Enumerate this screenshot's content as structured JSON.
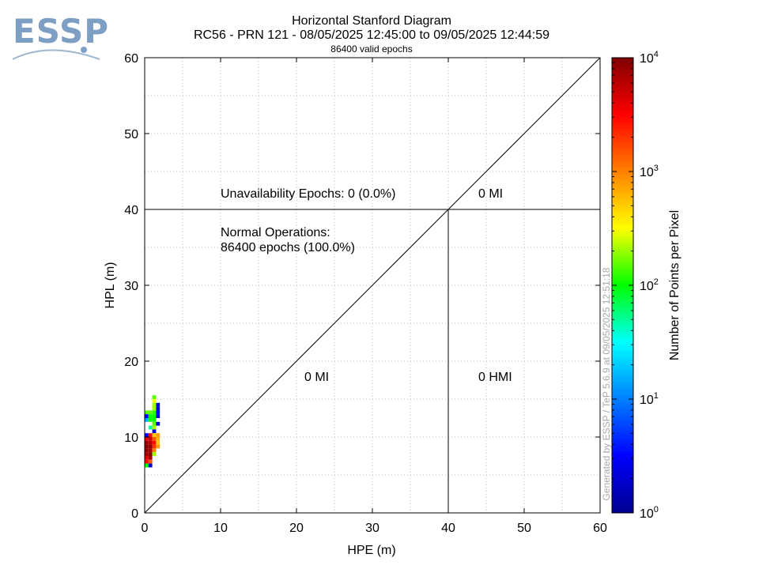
{
  "logo": {
    "text": "ESSP"
  },
  "chart_data": {
    "type": "heatmap",
    "title": "Horizontal Stanford Diagram",
    "subtitle": "RC56 - PRN 121 - 08/05/2025 12:45:00 to 09/05/2025 12:44:59",
    "epochs_label": "86400 valid epochs",
    "xlabel": "HPE (m)",
    "ylabel": "HPL (m)",
    "xlim": [
      0,
      60
    ],
    "ylim": [
      0,
      60
    ],
    "x_ticks": [
      0,
      10,
      20,
      30,
      40,
      50,
      60
    ],
    "y_ticks": [
      0,
      10,
      20,
      30,
      40,
      50,
      60
    ],
    "alert_limit": 40,
    "colorbar": {
      "label": "Number of Points per Pixel",
      "scale": "log",
      "min": 1,
      "max": 10000,
      "ticks": [
        {
          "value": 1,
          "base": "10",
          "exp": "0"
        },
        {
          "value": 10,
          "base": "10",
          "exp": "1"
        },
        {
          "value": 100,
          "base": "10",
          "exp": "2"
        },
        {
          "value": 1000,
          "base": "10",
          "exp": "3"
        },
        {
          "value": 10000,
          "base": "10",
          "exp": "4"
        }
      ]
    },
    "annotations": {
      "unavailability": "Unavailability Epochs: 0 (0.0%)",
      "normal_ops_line1": "Normal Operations:",
      "normal_ops_line2": "86400 epochs (100.0%)",
      "mi_top": "0 MI",
      "mi_diag": "0 MI",
      "hmi": "0 HMI"
    },
    "cell_size_m": 0.5,
    "cells": [
      {
        "hpe": 1.0,
        "hpl": 15.0,
        "count": 150
      },
      {
        "hpe": 1.0,
        "hpl": 14.5,
        "count": 300
      },
      {
        "hpe": 1.5,
        "hpl": 14.0,
        "count": 2
      },
      {
        "hpe": 1.0,
        "hpl": 14.0,
        "count": 200
      },
      {
        "hpe": 1.5,
        "hpl": 13.5,
        "count": 2
      },
      {
        "hpe": 1.0,
        "hpl": 13.5,
        "count": 200
      },
      {
        "hpe": 0.5,
        "hpl": 13.0,
        "count": 150
      },
      {
        "hpe": 0.0,
        "hpl": 13.0,
        "count": 150
      },
      {
        "hpe": 1.0,
        "hpl": 13.0,
        "count": 120
      },
      {
        "hpe": 1.5,
        "hpl": 13.0,
        "count": 3
      },
      {
        "hpe": 0.0,
        "hpl": 12.5,
        "count": 3
      },
      {
        "hpe": 0.5,
        "hpl": 12.5,
        "count": 100
      },
      {
        "hpe": 1.0,
        "hpl": 12.5,
        "count": 100
      },
      {
        "hpe": 1.5,
        "hpl": 12.5,
        "count": 2
      },
      {
        "hpe": 0.0,
        "hpl": 12.0,
        "count": 15
      },
      {
        "hpe": 0.5,
        "hpl": 12.0,
        "count": 100
      },
      {
        "hpe": 1.0,
        "hpl": 12.0,
        "count": 100
      },
      {
        "hpe": 1.0,
        "hpl": 11.5,
        "count": 150
      },
      {
        "hpe": 1.5,
        "hpl": 11.5,
        "count": 2
      },
      {
        "hpe": 1.0,
        "hpl": 11.0,
        "count": 200
      },
      {
        "hpe": 0.5,
        "hpl": 11.0,
        "count": 50
      },
      {
        "hpe": 1.0,
        "hpl": 10.5,
        "count": 2
      },
      {
        "hpe": 0.5,
        "hpl": 10.0,
        "count": 3000
      },
      {
        "hpe": 0.0,
        "hpl": 10.0,
        "count": 3
      },
      {
        "hpe": 1.0,
        "hpl": 10.0,
        "count": 500
      },
      {
        "hpe": 1.5,
        "hpl": 10.0,
        "count": 800
      },
      {
        "hpe": 0.0,
        "hpl": 9.5,
        "count": 4000
      },
      {
        "hpe": 0.5,
        "hpl": 9.5,
        "count": 5000
      },
      {
        "hpe": 1.0,
        "hpl": 9.5,
        "count": 1500
      },
      {
        "hpe": 1.5,
        "hpl": 9.5,
        "count": 600
      },
      {
        "hpe": 0.0,
        "hpl": 9.0,
        "count": 8000
      },
      {
        "hpe": 0.5,
        "hpl": 9.0,
        "count": 6000
      },
      {
        "hpe": 1.0,
        "hpl": 9.0,
        "count": 3000
      },
      {
        "hpe": 1.5,
        "hpl": 9.0,
        "count": 500
      },
      {
        "hpe": 0.0,
        "hpl": 8.5,
        "count": 9000
      },
      {
        "hpe": 0.5,
        "hpl": 8.5,
        "count": 8000
      },
      {
        "hpe": 1.0,
        "hpl": 8.5,
        "count": 2000
      },
      {
        "hpe": 1.5,
        "hpl": 8.5,
        "count": 800
      },
      {
        "hpe": 0.0,
        "hpl": 8.0,
        "count": 9000
      },
      {
        "hpe": 0.5,
        "hpl": 8.0,
        "count": 7000
      },
      {
        "hpe": 1.0,
        "hpl": 8.0,
        "count": 1000
      },
      {
        "hpe": 0.0,
        "hpl": 7.5,
        "count": 7000
      },
      {
        "hpe": 0.5,
        "hpl": 7.5,
        "count": 9000
      },
      {
        "hpe": 1.0,
        "hpl": 7.5,
        "count": 200
      },
      {
        "hpe": 0.0,
        "hpl": 7.0,
        "count": 4000
      },
      {
        "hpe": 0.5,
        "hpl": 7.0,
        "count": 7000
      },
      {
        "hpe": 0.0,
        "hpl": 6.5,
        "count": 3000
      },
      {
        "hpe": 0.5,
        "hpl": 6.5,
        "count": 1500
      },
      {
        "hpe": 0.0,
        "hpl": 6.0,
        "count": 100
      },
      {
        "hpe": 0.5,
        "hpl": 6.0,
        "count": 2
      }
    ]
  },
  "watermark": "Generated by ESSP / TeP 5.6.9 at 09/05/2025 12:51:18"
}
